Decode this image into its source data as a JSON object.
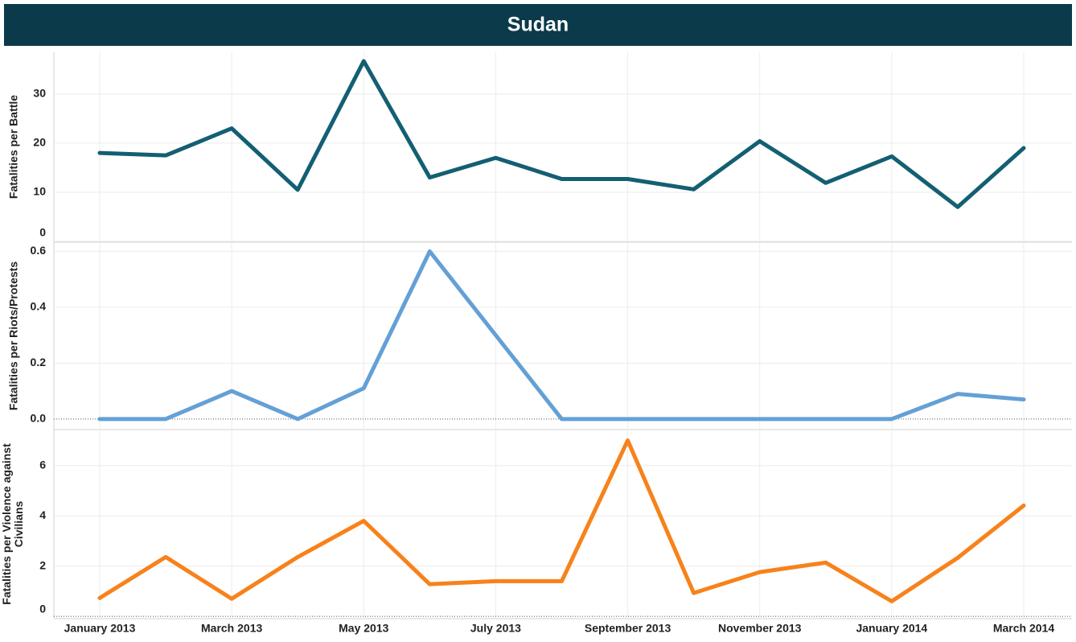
{
  "chart_data": {
    "type": "line",
    "title": "Sudan",
    "categories": [
      "January 2013",
      null,
      "March 2013",
      null,
      "May 2013",
      null,
      "July 2013",
      null,
      "September 2013",
      null,
      "November 2013",
      null,
      "January 2014",
      null,
      "March 2014"
    ],
    "grid": true,
    "panels": [
      {
        "ylabel": "Fatalities per Battle",
        "color": "#135f73",
        "values": [
          18,
          17.5,
          23,
          10.5,
          36.7,
          13,
          17,
          12.7,
          12.7,
          10.6,
          20.4,
          11.9,
          17.3,
          7,
          19
        ],
        "ylim": [
          0,
          38.5
        ],
        "yticks": [
          0,
          10,
          20,
          30
        ]
      },
      {
        "ylabel": "Fatalities per Riots/Protests",
        "color": "#64a0d6",
        "values": [
          0,
          0,
          0.1,
          0,
          0.11,
          0.6,
          0.3,
          0,
          0,
          0,
          0,
          0,
          0,
          0.09,
          0.07
        ],
        "ylim": [
          -0.035,
          0.63
        ],
        "yticks": [
          {
            "value": 0,
            "label": "0.0"
          },
          0.2,
          0.4,
          0.6
        ]
      },
      {
        "ylabel": "Fatalities per Violence against Civilians",
        "color": "#f7821b",
        "values": [
          0.73,
          2.36,
          0.7,
          2.36,
          3.8,
          1.28,
          1.4,
          1.4,
          7,
          0.93,
          1.76,
          2.14,
          0.6,
          2.33,
          4.41
        ],
        "ylim": [
          -0.06,
          7.4
        ],
        "yticks": [
          0,
          2,
          4,
          6
        ]
      }
    ]
  }
}
